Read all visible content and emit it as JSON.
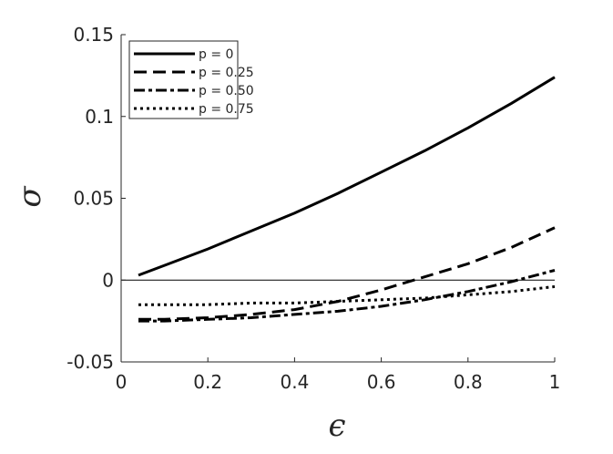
{
  "chart_data": {
    "type": "line",
    "title": "",
    "xlabel": "ϵ",
    "ylabel": "σ",
    "xlim": [
      0,
      1
    ],
    "ylim": [
      -0.05,
      0.15
    ],
    "xticks": [
      0,
      0.2,
      0.4,
      0.6,
      0.8,
      1
    ],
    "yticks": [
      -0.05,
      0,
      0.05,
      0.1,
      0.15
    ],
    "xtick_labels": [
      "0",
      "0.2",
      "0.4",
      "0.6",
      "0.8",
      "1"
    ],
    "ytick_labels": [
      "-0.05",
      "0",
      "0.05",
      "0.1",
      "0.15"
    ],
    "grid": false,
    "legend_position": "top-left",
    "reference_line": {
      "y": 0
    },
    "series": [
      {
        "name": "p = 0",
        "style": "solid",
        "x": [
          0.04,
          0.1,
          0.2,
          0.3,
          0.4,
          0.5,
          0.6,
          0.7,
          0.8,
          0.9,
          1.0
        ],
        "y": [
          0.003,
          0.009,
          0.019,
          0.03,
          0.041,
          0.053,
          0.066,
          0.079,
          0.093,
          0.108,
          0.124
        ]
      },
      {
        "name": "p = 0.25",
        "style": "dashed",
        "x": [
          0.04,
          0.1,
          0.2,
          0.3,
          0.4,
          0.5,
          0.6,
          0.7,
          0.8,
          0.9,
          1.0
        ],
        "y": [
          -0.024,
          -0.024,
          -0.023,
          -0.021,
          -0.018,
          -0.013,
          -0.006,
          0.002,
          0.01,
          0.02,
          0.032
        ]
      },
      {
        "name": "p = 0.50",
        "style": "dash-dot",
        "x": [
          0.04,
          0.1,
          0.2,
          0.3,
          0.4,
          0.5,
          0.6,
          0.7,
          0.8,
          0.9,
          1.0
        ],
        "y": [
          -0.025,
          -0.025,
          -0.024,
          -0.023,
          -0.021,
          -0.019,
          -0.016,
          -0.012,
          -0.007,
          -0.001,
          0.006
        ]
      },
      {
        "name": "p = 0.75",
        "style": "dotted",
        "x": [
          0.04,
          0.1,
          0.2,
          0.3,
          0.4,
          0.5,
          0.6,
          0.7,
          0.8,
          0.9,
          1.0
        ],
        "y": [
          -0.015,
          -0.015,
          -0.015,
          -0.014,
          -0.014,
          -0.013,
          -0.012,
          -0.011,
          -0.009,
          -0.007,
          -0.004
        ]
      }
    ],
    "colors": {
      "lines": "#000000",
      "axes": "#262626",
      "background": "#ffffff"
    }
  }
}
